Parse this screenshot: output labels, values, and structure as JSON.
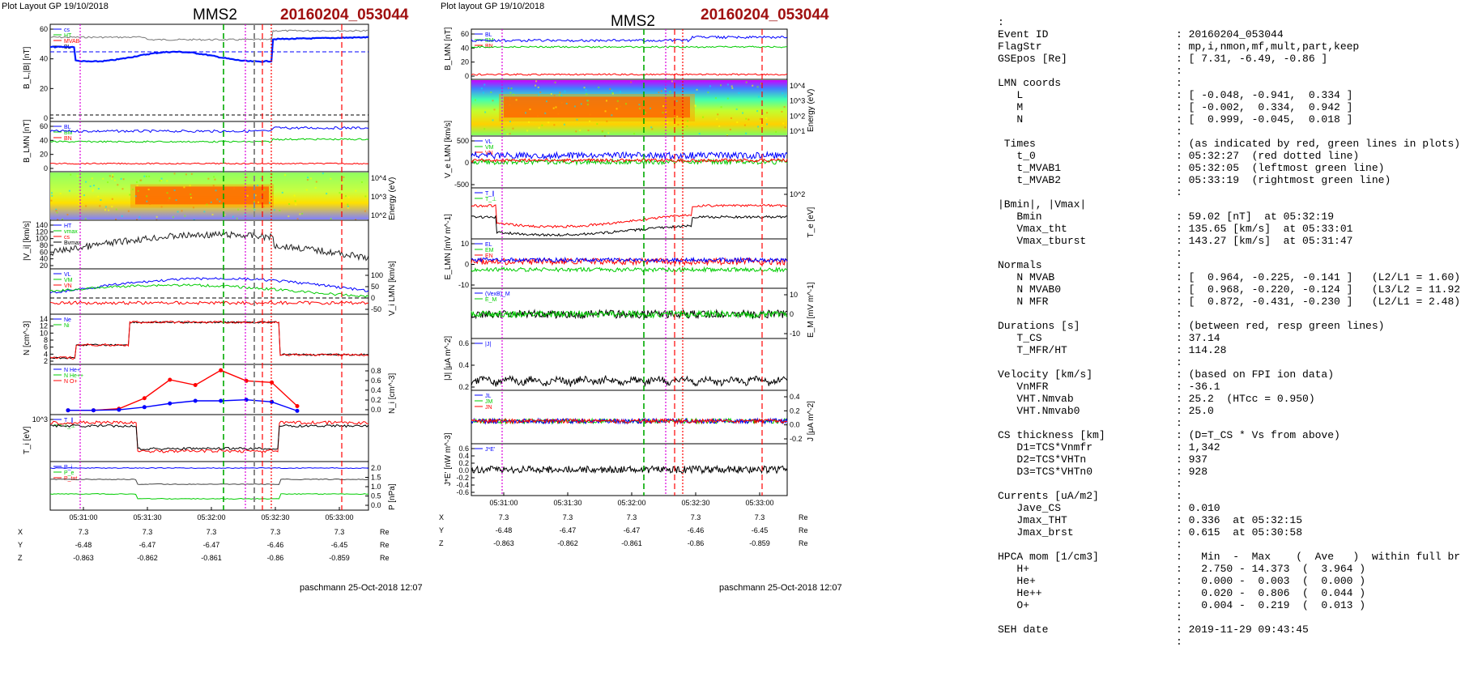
{
  "left": {
    "layout_label": "Plot Layout GP 19/10/2018",
    "spacecraft": "MMS2",
    "event": "20160204_053044",
    "footer": "paschmann 25-Oct-2018 12:07",
    "panels": [
      {
        "ylabel": "B_L,|B| [nT]",
        "yticks": [
          "60",
          "40",
          "20",
          "0"
        ],
        "legend": [
          "cs",
          "HT",
          "MVAB",
          "BL"
        ],
        "right_ticks": []
      },
      {
        "ylabel": "B_LMN [nT]",
        "yticks": [
          "60",
          "40",
          "20",
          "0"
        ],
        "legend": [
          "BL",
          "BM",
          "BN"
        ],
        "right_ticks": []
      },
      {
        "ylabel": "",
        "yticks": [],
        "legend": [],
        "right_ticks": [
          "10^4",
          "10^3",
          "10^2"
        ],
        "right_label": "Energy (eV)"
      },
      {
        "ylabel": "|V_i| [km/s]",
        "yticks": [
          "140",
          "120",
          "100",
          "80",
          "60",
          "40",
          "20"
        ],
        "legend": [
          "HT",
          "vmax",
          "cs",
          "Bvmax"
        ],
        "right_ticks": []
      },
      {
        "ylabel": "",
        "yticks": [],
        "legend": [
          "VL",
          "VM",
          "VN"
        ],
        "right_ticks": [
          "100",
          "50",
          "0",
          "-50"
        ],
        "right_label": "V_i LMN [km/s]"
      },
      {
        "ylabel": "N [cm^-3]",
        "yticks": [
          "14",
          "12",
          "10",
          "8",
          "6",
          "4",
          "2"
        ],
        "legend": [
          "Ne",
          "Ni"
        ],
        "right_ticks": []
      },
      {
        "ylabel": "",
        "yticks": [],
        "legend": [
          "N He+",
          "N He++",
          "N O+"
        ],
        "right_ticks": [
          "0.8",
          "0.6",
          "0.4",
          "0.2",
          "0.0"
        ],
        "right_label": "N_i [cm^-3]"
      },
      {
        "ylabel": "T_i [eV]",
        "yticks": [
          "10^3"
        ],
        "legend": [
          "T_∥",
          "T_⊥"
        ],
        "right_ticks": []
      },
      {
        "ylabel": "",
        "yticks": [],
        "legend": [
          "P_i",
          "P_e",
          "P_tot"
        ],
        "right_ticks": [
          "2.0",
          "1.5",
          "1.0",
          "0.5",
          "0.0"
        ],
        "right_label": "P [nPa]"
      }
    ],
    "time_ticks": [
      "05:31:00",
      "05:31:30",
      "05:32:00",
      "05:32:30",
      "05:33:00"
    ],
    "coords": [
      {
        "label": "X",
        "values": [
          "7.3",
          "7.3",
          "7.3",
          "7.3",
          "7.3"
        ],
        "unit": "Re"
      },
      {
        "label": "Y",
        "values": [
          "-6.48",
          "-6.47",
          "-6.47",
          "-6.46",
          "-6.45"
        ],
        "unit": "Re"
      },
      {
        "label": "Z",
        "values": [
          "-0.863",
          "-0.862",
          "-0.861",
          "-0.86",
          "-0.859"
        ],
        "unit": "Re"
      }
    ]
  },
  "middle": {
    "layout_label": "Plot layout GP 19/10/2018",
    "spacecraft": "MMS2",
    "event": "20160204_053044",
    "footer": "paschmann 25-Oct-2018 12:07",
    "panels": [
      {
        "ylabel": "B_LMN [nT]",
        "yticks": [
          "60",
          "40",
          "20",
          "0"
        ],
        "legend": [
          "BL",
          "BM",
          "BN"
        ],
        "right_ticks": []
      },
      {
        "ylabel": "",
        "yticks": [],
        "legend": [],
        "right_ticks": [
          "10^4",
          "10^3",
          "10^2",
          "10^1"
        ],
        "right_label": "Energy (eV)"
      },
      {
        "ylabel": "V_e LMN [km/s]",
        "yticks": [
          "500",
          "0",
          "-500"
        ],
        "legend": [
          "VL",
          "VM",
          "VN"
        ],
        "right_ticks": []
      },
      {
        "ylabel": "",
        "yticks": [],
        "legend": [
          "T_∥",
          "T_⊥"
        ],
        "right_ticks": [
          "10^2"
        ],
        "right_label": "T_e [eV]"
      },
      {
        "ylabel": "E_LMN [mV m^-1]",
        "yticks": [
          "10",
          "0",
          "-10"
        ],
        "legend": [
          "EL",
          "EM",
          "EN"
        ],
        "right_ticks": []
      },
      {
        "ylabel": "",
        "yticks": [],
        "legend": [
          "(VexB)_M",
          "E_M"
        ],
        "right_ticks": [
          "10",
          "0",
          "-10"
        ],
        "right_label": "E_M [mV m^-1]"
      },
      {
        "ylabel": "|J| [μA m^-2]",
        "yticks": [
          "0.6",
          "0.4",
          "0.2"
        ],
        "legend": [
          "|J|"
        ],
        "right_ticks": []
      },
      {
        "ylabel": "",
        "yticks": [],
        "legend": [
          "JL",
          "JM",
          "JN"
        ],
        "right_ticks": [
          "0.4",
          "0.2",
          "0.0",
          "-0.2"
        ],
        "right_label": "J [μA m^-2]"
      },
      {
        "ylabel": "J*E' [nW m^-3]",
        "yticks": [
          "0.6",
          "0.4",
          "0.2",
          "0.0",
          "-0.2",
          "-0.4",
          "-0.6"
        ],
        "legend": [
          "J*E'"
        ],
        "right_ticks": []
      }
    ],
    "time_ticks": [
      "05:31:00",
      "05:31:30",
      "05:32:00",
      "05:32:30",
      "05:33:00"
    ],
    "coords": [
      {
        "label": "X",
        "values": [
          "7.3",
          "7.3",
          "7.3",
          "7.3",
          "7.3"
        ],
        "unit": "Re"
      },
      {
        "label": "Y",
        "values": [
          "-6.48",
          "-6.47",
          "-6.47",
          "-6.46",
          "-6.45"
        ],
        "unit": "Re"
      },
      {
        "label": "Z",
        "values": [
          "-0.863",
          "-0.862",
          "-0.861",
          "-0.86",
          "-0.859"
        ],
        "unit": "Re"
      }
    ]
  },
  "info_lines": [
    [
      ":",
      ""
    ],
    [
      "Event ID",
      ": 20160204_053044"
    ],
    [
      "FlagStr",
      ": mp,i,nmon,mf,mult,part,keep"
    ],
    [
      "GSEpos [Re]",
      ": [ 7.31, -6.49, -0.86 ]"
    ],
    [
      "",
      ":"
    ],
    [
      "LMN coords",
      ":"
    ],
    [
      "   L",
      ": [ -0.048, -0.941,  0.334 ]"
    ],
    [
      "   M",
      ": [ -0.002,  0.334,  0.942 ]"
    ],
    [
      "   N",
      ": [  0.999, -0.045,  0.018 ]"
    ],
    [
      "",
      ":"
    ],
    [
      " Times",
      ": (as indicated by red, green lines in plots)"
    ],
    [
      "   t_0",
      ": 05:32:27  (red dotted line)"
    ],
    [
      "   t_MVAB1",
      ": 05:32:05  (leftmost green line)"
    ],
    [
      "   t_MVAB2",
      ": 05:33:19  (rightmost green line)"
    ],
    [
      "",
      ":"
    ],
    [
      "|Bmin|, |Vmax|",
      ""
    ],
    [
      "   Bmin",
      ": 59.02 [nT]  at 05:32:19"
    ],
    [
      "   Vmax_tht",
      ": 135.65 [km/s]  at 05:33:01"
    ],
    [
      "   Vmax_tburst",
      ": 143.27 [km/s]  at 05:31:47"
    ],
    [
      "",
      ":"
    ],
    [
      "Normals",
      ":"
    ],
    [
      "   N MVAB",
      ": [  0.964, -0.225, -0.141 ]   (L2/L1 = 1.60)"
    ],
    [
      "   N MVAB0",
      ": [  0.968, -0.220, -0.124 ]   (L3/L2 = 11.92)"
    ],
    [
      "   N MFR",
      ": [  0.872, -0.431, -0.230 ]   (L2/L1 = 2.48)"
    ],
    [
      "",
      ":"
    ],
    [
      "Durations [s]",
      ": (between red, resp green lines)"
    ],
    [
      "   T_CS",
      ": 37.14"
    ],
    [
      "   T_MFR/HT",
      ": 114.28"
    ],
    [
      "",
      ":"
    ],
    [
      "Velocity [km/s]",
      ": (based on FPI ion data)"
    ],
    [
      "   VnMFR",
      ": -36.1"
    ],
    [
      "   VHT.Nmvab",
      ": 25.2  (HTcc = 0.950)"
    ],
    [
      "   VHT.Nmvab0",
      ": 25.0"
    ],
    [
      "",
      ":"
    ],
    [
      "CS thickness [km]",
      ": (D=T_CS * Vs from above)"
    ],
    [
      "   D1=TCS*Vnmfr",
      ": 1,342"
    ],
    [
      "   D2=TCS*VHTn",
      ": 937"
    ],
    [
      "   D3=TCS*VHTn0",
      ": 928"
    ],
    [
      "",
      ":"
    ],
    [
      "Currents [uA/m2]",
      ":"
    ],
    [
      "   Jave_CS",
      ": 0.010"
    ],
    [
      "   Jmax_THT",
      ": 0.336  at 05:32:15"
    ],
    [
      "   Jmax_brst",
      ": 0.615  at 05:30:58"
    ],
    [
      "",
      ":"
    ],
    [
      "HPCA mom [1/cm3]",
      ":   Min  -  Max    (  Ave   )  within full brst int"
    ],
    [
      "   H+",
      ":   2.750 - 14.373  (  3.964 )"
    ],
    [
      "   He+",
      ":   0.000 -  0.003  (  0.000 )"
    ],
    [
      "   He++",
      ":   0.020 -  0.806  (  0.044 )"
    ],
    [
      "   O+",
      ":   0.004 -  0.219  (  0.013 )"
    ],
    [
      "",
      ":"
    ],
    [
      "SEH date",
      ": 2019-11-29 09:43:45"
    ],
    [
      "",
      ":"
    ]
  ],
  "chart_data": [
    {
      "type": "line",
      "title": "MMS2 20160204_053044",
      "xlabel": "time",
      "panels": [
        "B_L,|B|",
        "B_LMN",
        "ion spectrogram",
        "|V_i|",
        "V_i LMN",
        "N",
        "N_i minor",
        "T_i",
        "P"
      ],
      "minor_ion_density": {
        "x": [
          "05:31:00",
          "05:31:10",
          "05:31:20",
          "05:31:30",
          "05:31:40",
          "05:31:50",
          "05:32:00",
          "05:32:10",
          "05:32:20",
          "05:32:30"
        ],
        "series": [
          {
            "name": "N He++",
            "values": [
              0.02,
              0.02,
              0.05,
              0.25,
              0.6,
              0.5,
              0.78,
              0.58,
              0.55,
              0.1
            ]
          },
          {
            "name": "N O+",
            "values": [
              0.02,
              0.02,
              0.03,
              0.08,
              0.15,
              0.2,
              0.2,
              0.22,
              0.18,
              0.01
            ]
          }
        ]
      }
    },
    {
      "type": "line",
      "title": "MMS2 20160204_053044",
      "xlabel": "time",
      "panels": [
        "B_LMN",
        "electron spectrogram",
        "V_e LMN",
        "T_e",
        "E_LMN",
        "E_M",
        "|J|",
        "J",
        "J*E'"
      ]
    }
  ]
}
